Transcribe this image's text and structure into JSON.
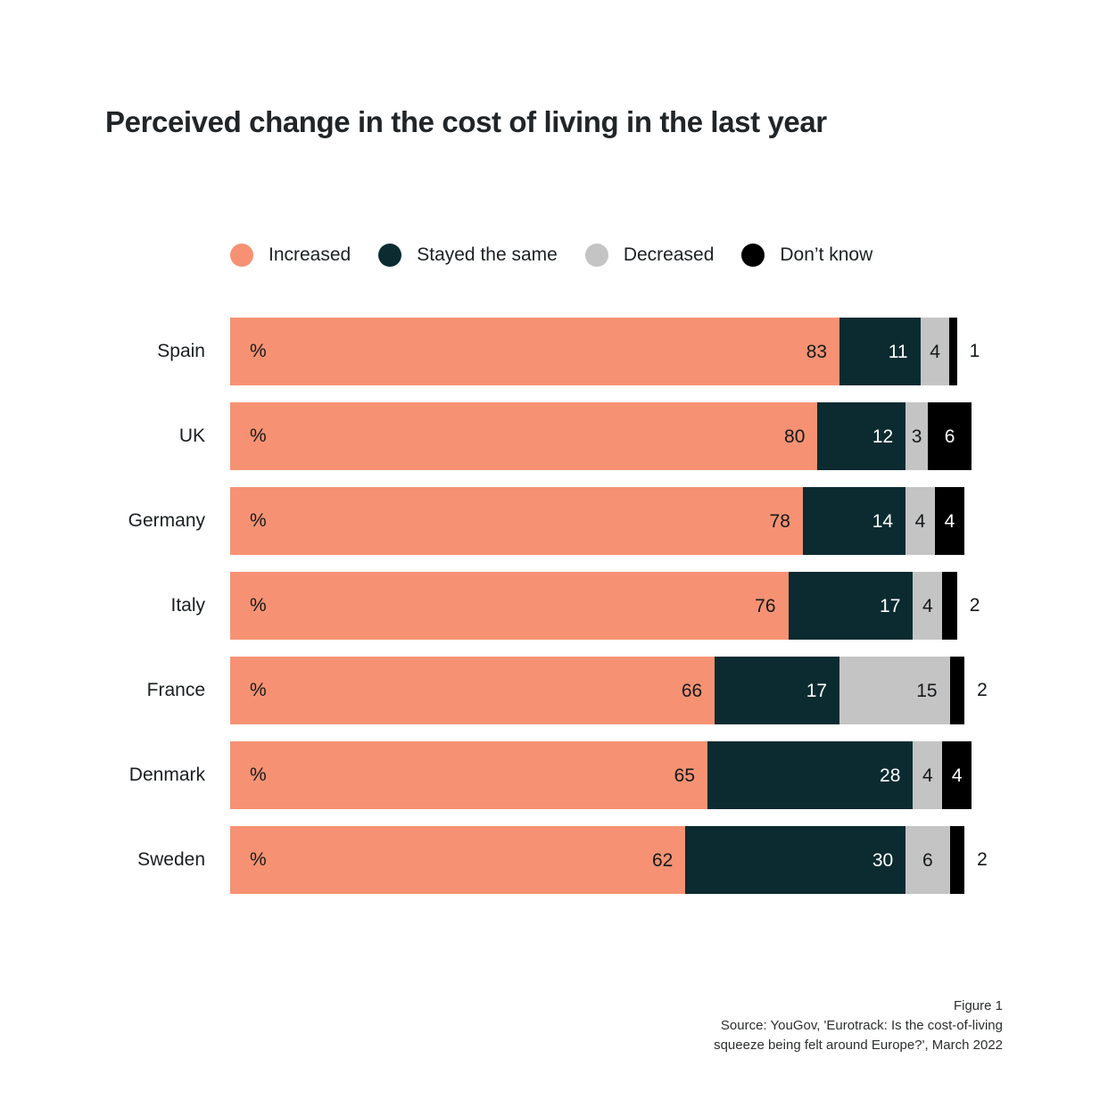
{
  "title": "Perceived change in the cost of living in the last year",
  "unit_symbol": "%",
  "colors": {
    "increased": "#F69273",
    "stayed_the_same": "#0B2B31",
    "decreased": "#C4C4C4",
    "dont_know": "#000000",
    "label_dark": "#14191b",
    "label_light": "#ffffff"
  },
  "legend": [
    {
      "label": "Increased",
      "key": "increased"
    },
    {
      "label": "Stayed the same",
      "key": "stayed_the_same"
    },
    {
      "label": "Decreased",
      "key": "decreased"
    },
    {
      "label": "Don’t know",
      "key": "dont_know"
    }
  ],
  "chart_data": {
    "type": "bar",
    "orientation": "horizontal-stacked",
    "title": "Perceived change in the cost of living in the last year",
    "unit": "%",
    "xlim": [
      0,
      100
    ],
    "grid": false,
    "legend_position": "top",
    "categories": [
      "Spain",
      "UK",
      "Germany",
      "Italy",
      "France",
      "Denmark",
      "Sweden"
    ],
    "series": [
      {
        "name": "Increased",
        "key": "increased",
        "values": [
          83,
          80,
          78,
          76,
          66,
          65,
          62
        ]
      },
      {
        "name": "Stayed the same",
        "key": "stayed_the_same",
        "values": [
          11,
          12,
          14,
          17,
          17,
          28,
          30
        ]
      },
      {
        "name": "Decreased",
        "key": "decreased",
        "values": [
          4,
          3,
          4,
          4,
          15,
          4,
          6
        ]
      },
      {
        "name": "Don’t know",
        "key": "dont_know",
        "values": [
          1,
          6,
          4,
          2,
          2,
          4,
          2
        ]
      }
    ]
  },
  "caption": {
    "figure": "Figure 1",
    "source_line1": "Source: YouGov, 'Eurotrack: Is the cost-of-living",
    "source_line2": "squeeze being felt around Europe?', March 2022"
  }
}
